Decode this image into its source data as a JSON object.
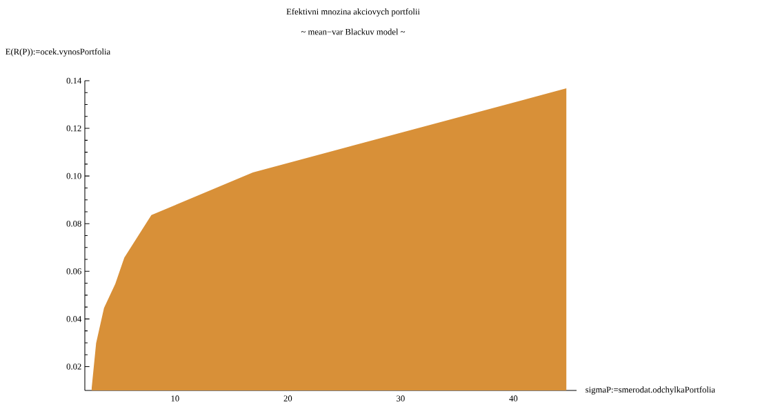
{
  "chart_data": {
    "type": "area",
    "title": "Efektivni mnozina akciovych portfolii",
    "subtitle": "~ mean−var Blackuv model ~",
    "xlabel": "sigmaP:=smerodat.odchylkaPortfolia",
    "ylabel": "E(R(P)):=ocek.vynosPortfolia",
    "x": [
      2.6,
      3.0,
      3.7,
      4.7,
      5.5,
      7.9,
      16.9,
      44.7
    ],
    "values": [
      0.0107,
      0.0298,
      0.0446,
      0.0547,
      0.0657,
      0.0836,
      0.1015,
      0.1368
    ],
    "color": "#d89038",
    "xlim": [
      2,
      45.6
    ],
    "ylim": [
      0.01,
      0.14
    ],
    "xticks": [
      10,
      20,
      30,
      40
    ],
    "yticks": [
      {
        "value": 0.02,
        "label": "0.02"
      },
      {
        "value": 0.04,
        "label": "0.04"
      },
      {
        "value": 0.06,
        "label": "0.06"
      },
      {
        "value": 0.08,
        "label": "0.08"
      },
      {
        "value": 0.1,
        "label": "0.10"
      },
      {
        "value": 0.12,
        "label": "0.12"
      },
      {
        "value": 0.14,
        "label": "0.14"
      }
    ]
  }
}
